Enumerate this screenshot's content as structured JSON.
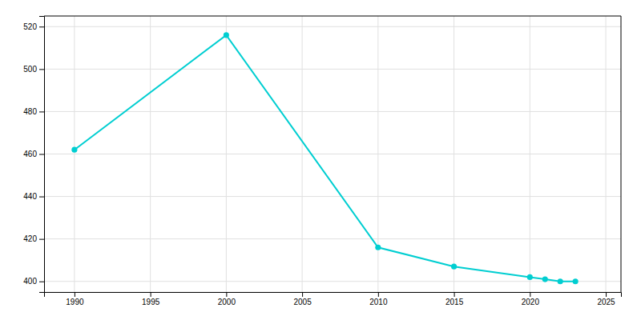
{
  "chart_data": {
    "type": "line",
    "x": [
      1990,
      2000,
      2010,
      2015,
      2020,
      2021,
      2022,
      2023
    ],
    "values": [
      462,
      516,
      416,
      407,
      402,
      401,
      400,
      400
    ],
    "color": "#00CED1",
    "marker": "circle",
    "xlim": [
      1988,
      2026
    ],
    "ylim": [
      395,
      525
    ],
    "xticks": [
      1990,
      1995,
      2000,
      2005,
      2010,
      2015,
      2020,
      2025
    ],
    "yticks": [
      400,
      420,
      440,
      460,
      480,
      500,
      520
    ],
    "grid": true
  }
}
